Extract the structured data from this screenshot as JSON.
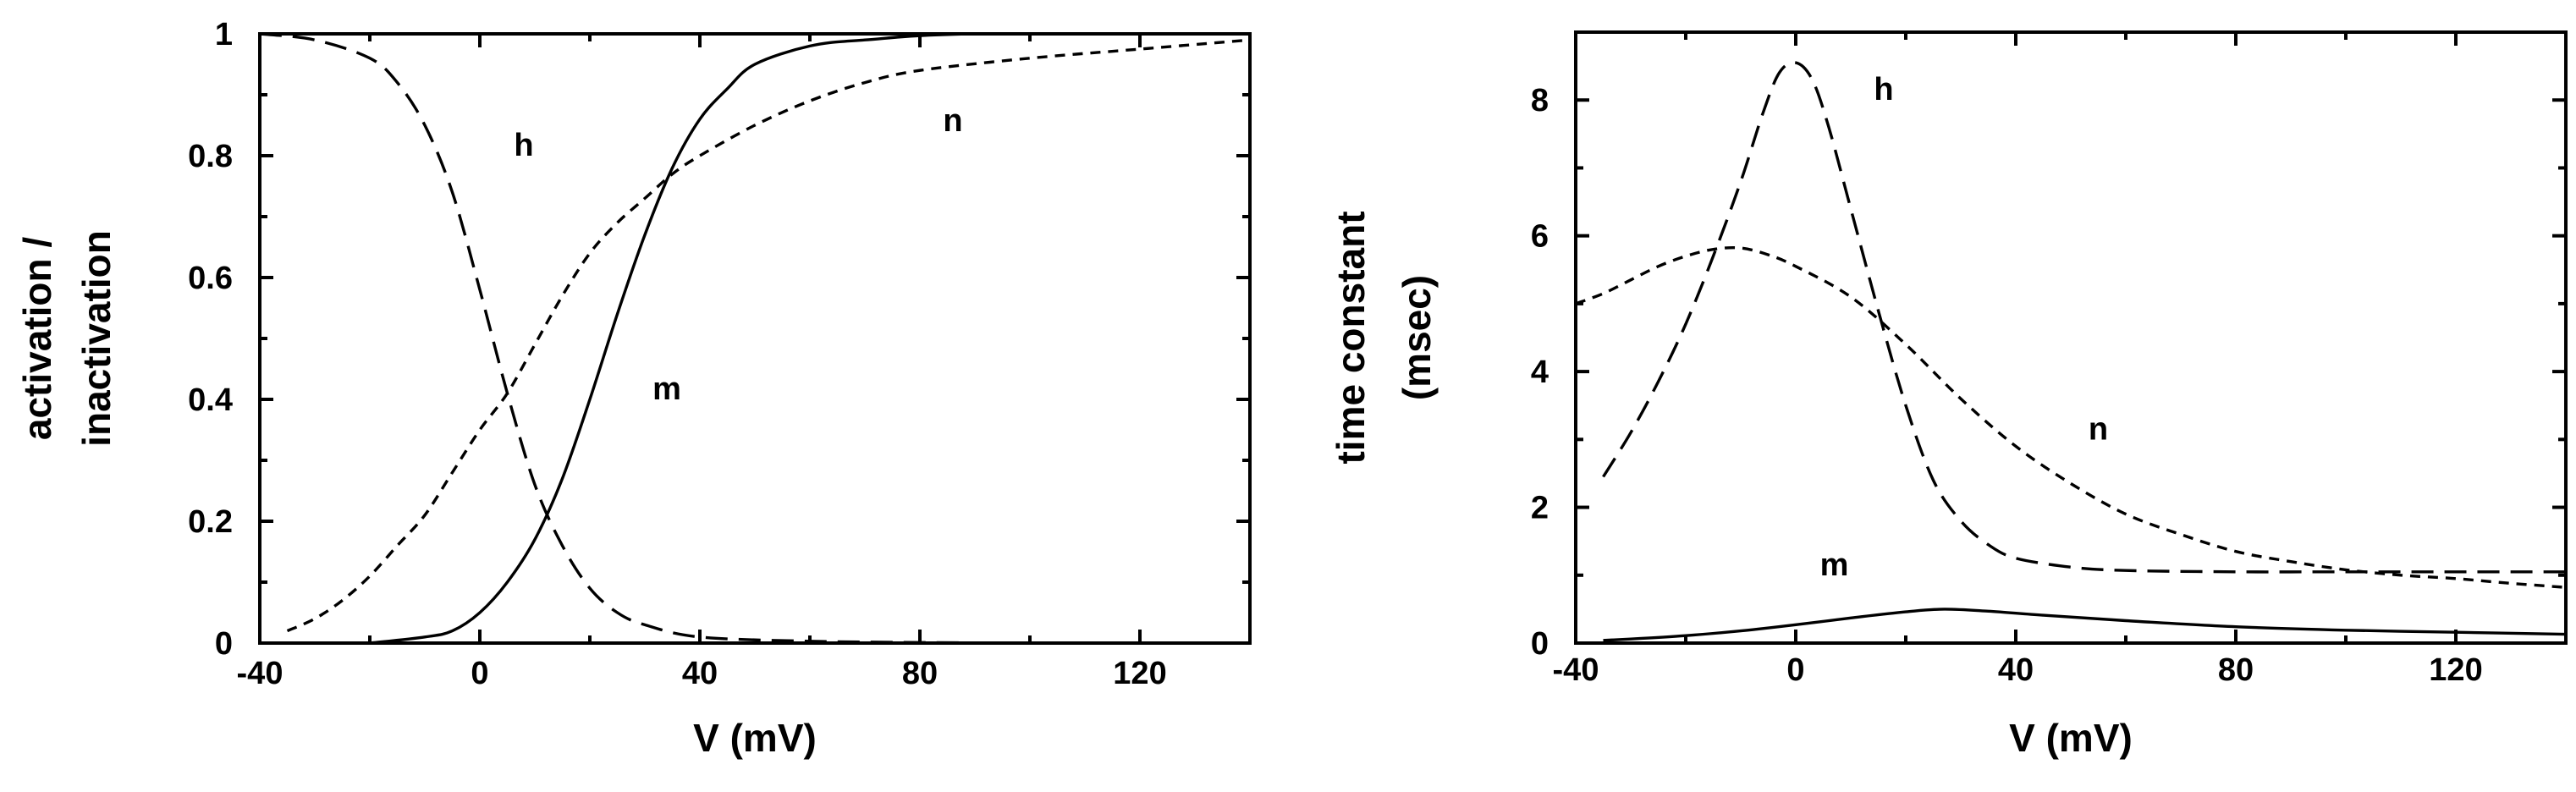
{
  "chart_data": [
    {
      "type": "line",
      "xlabel": "V (mV)",
      "ylabel_lines": [
        "activation /",
        "inactivation"
      ],
      "xlim": [
        -40,
        140
      ],
      "ylim": [
        0,
        1
      ],
      "x_ticks": [
        -40,
        0,
        40,
        80,
        120
      ],
      "y_ticks": [
        0,
        0.2,
        0.4,
        0.6,
        0.8,
        1
      ],
      "y_tick_labels": [
        "0",
        "0.2",
        "0.4",
        "0.6",
        "0.8",
        "1"
      ],
      "grid": false,
      "series": [
        {
          "name": "h",
          "style": "long-dash",
          "points": [
            [
              -40,
              1.0
            ],
            [
              -30,
              0.99
            ],
            [
              -20,
              0.96
            ],
            [
              -15,
              0.92
            ],
            [
              -10,
              0.85
            ],
            [
              -5,
              0.74
            ],
            [
              0,
              0.58
            ],
            [
              5,
              0.41
            ],
            [
              10,
              0.26
            ],
            [
              15,
              0.16
            ],
            [
              20,
              0.09
            ],
            [
              25,
              0.05
            ],
            [
              30,
              0.03
            ],
            [
              40,
              0.01
            ],
            [
              60,
              0.003
            ],
            [
              80,
              0.001
            ],
            [
              100,
              0.0
            ]
          ],
          "label_at": [
            8,
            0.8
          ]
        },
        {
          "name": "m",
          "style": "solid",
          "points": [
            [
              -20,
              0.0
            ],
            [
              -10,
              0.01
            ],
            [
              -5,
              0.02
            ],
            [
              0,
              0.05
            ],
            [
              5,
              0.1
            ],
            [
              10,
              0.17
            ],
            [
              15,
              0.27
            ],
            [
              20,
              0.4
            ],
            [
              25,
              0.54
            ],
            [
              30,
              0.67
            ],
            [
              35,
              0.78
            ],
            [
              40,
              0.86
            ],
            [
              45,
              0.91
            ],
            [
              50,
              0.95
            ],
            [
              60,
              0.98
            ],
            [
              70,
              0.99
            ],
            [
              90,
              1.0
            ],
            [
              140,
              1.0
            ]
          ],
          "label_at": [
            34,
            0.4
          ]
        },
        {
          "name": "n",
          "style": "short-dash",
          "points": [
            [
              -35,
              0.02
            ],
            [
              -30,
              0.04
            ],
            [
              -25,
              0.07
            ],
            [
              -20,
              0.11
            ],
            [
              -15,
              0.16
            ],
            [
              -10,
              0.21
            ],
            [
              -5,
              0.28
            ],
            [
              0,
              0.35
            ],
            [
              5,
              0.41
            ],
            [
              10,
              0.49
            ],
            [
              15,
              0.57
            ],
            [
              20,
              0.64
            ],
            [
              25,
              0.69
            ],
            [
              30,
              0.73
            ],
            [
              35,
              0.77
            ],
            [
              40,
              0.8
            ],
            [
              50,
              0.85
            ],
            [
              60,
              0.89
            ],
            [
              70,
              0.92
            ],
            [
              80,
              0.94
            ],
            [
              100,
              0.96
            ],
            [
              120,
              0.975
            ],
            [
              140,
              0.99
            ]
          ],
          "label_at": [
            86,
            0.84
          ]
        }
      ]
    },
    {
      "type": "line",
      "xlabel": "V (mV)",
      "ylabel_lines": [
        "time constant",
        "(msec)"
      ],
      "xlim": [
        -40,
        140
      ],
      "ylim": [
        0,
        9
      ],
      "x_ticks": [
        -40,
        0,
        40,
        80,
        120
      ],
      "y_ticks": [
        0,
        2,
        4,
        6,
        8
      ],
      "y_tick_labels": [
        "0",
        "2",
        "4",
        "6",
        "8"
      ],
      "grid": false,
      "series": [
        {
          "name": "h",
          "style": "long-dash",
          "points": [
            [
              -35,
              2.45
            ],
            [
              -30,
              3.1
            ],
            [
              -25,
              3.85
            ],
            [
              -20,
              4.7
            ],
            [
              -15,
              5.7
            ],
            [
              -10,
              6.8
            ],
            [
              -6,
              7.8
            ],
            [
              -3,
              8.4
            ],
            [
              0,
              8.55
            ],
            [
              3,
              8.3
            ],
            [
              6,
              7.6
            ],
            [
              10,
              6.4
            ],
            [
              15,
              4.9
            ],
            [
              20,
              3.5
            ],
            [
              25,
              2.4
            ],
            [
              30,
              1.8
            ],
            [
              35,
              1.45
            ],
            [
              40,
              1.25
            ],
            [
              50,
              1.12
            ],
            [
              60,
              1.07
            ],
            [
              80,
              1.05
            ],
            [
              100,
              1.05
            ],
            [
              120,
              1.05
            ],
            [
              140,
              1.05
            ]
          ],
          "label_at": [
            16,
            8.0
          ]
        },
        {
          "name": "n",
          "style": "short-dash",
          "points": [
            [
              -40,
              5.0
            ],
            [
              -35,
              5.15
            ],
            [
              -30,
              5.35
            ],
            [
              -25,
              5.55
            ],
            [
              -20,
              5.7
            ],
            [
              -15,
              5.8
            ],
            [
              -10,
              5.82
            ],
            [
              -5,
              5.72
            ],
            [
              0,
              5.55
            ],
            [
              10,
              5.1
            ],
            [
              20,
              4.4
            ],
            [
              30,
              3.6
            ],
            [
              40,
              2.9
            ],
            [
              50,
              2.35
            ],
            [
              60,
              1.9
            ],
            [
              70,
              1.6
            ],
            [
              80,
              1.35
            ],
            [
              90,
              1.2
            ],
            [
              100,
              1.08
            ],
            [
              110,
              1.0
            ],
            [
              120,
              0.95
            ],
            [
              130,
              0.88
            ],
            [
              140,
              0.82
            ]
          ],
          "label_at": [
            55,
            3.0
          ]
        },
        {
          "name": "m",
          "style": "solid",
          "points": [
            [
              -35,
              0.04
            ],
            [
              -30,
              0.06
            ],
            [
              -20,
              0.11
            ],
            [
              -10,
              0.18
            ],
            [
              0,
              0.27
            ],
            [
              10,
              0.37
            ],
            [
              20,
              0.46
            ],
            [
              27,
              0.5
            ],
            [
              35,
              0.47
            ],
            [
              45,
              0.41
            ],
            [
              60,
              0.33
            ],
            [
              80,
              0.24
            ],
            [
              100,
              0.19
            ],
            [
              120,
              0.16
            ],
            [
              140,
              0.13
            ]
          ],
          "label_at": [
            7,
            1.0
          ]
        }
      ]
    }
  ]
}
